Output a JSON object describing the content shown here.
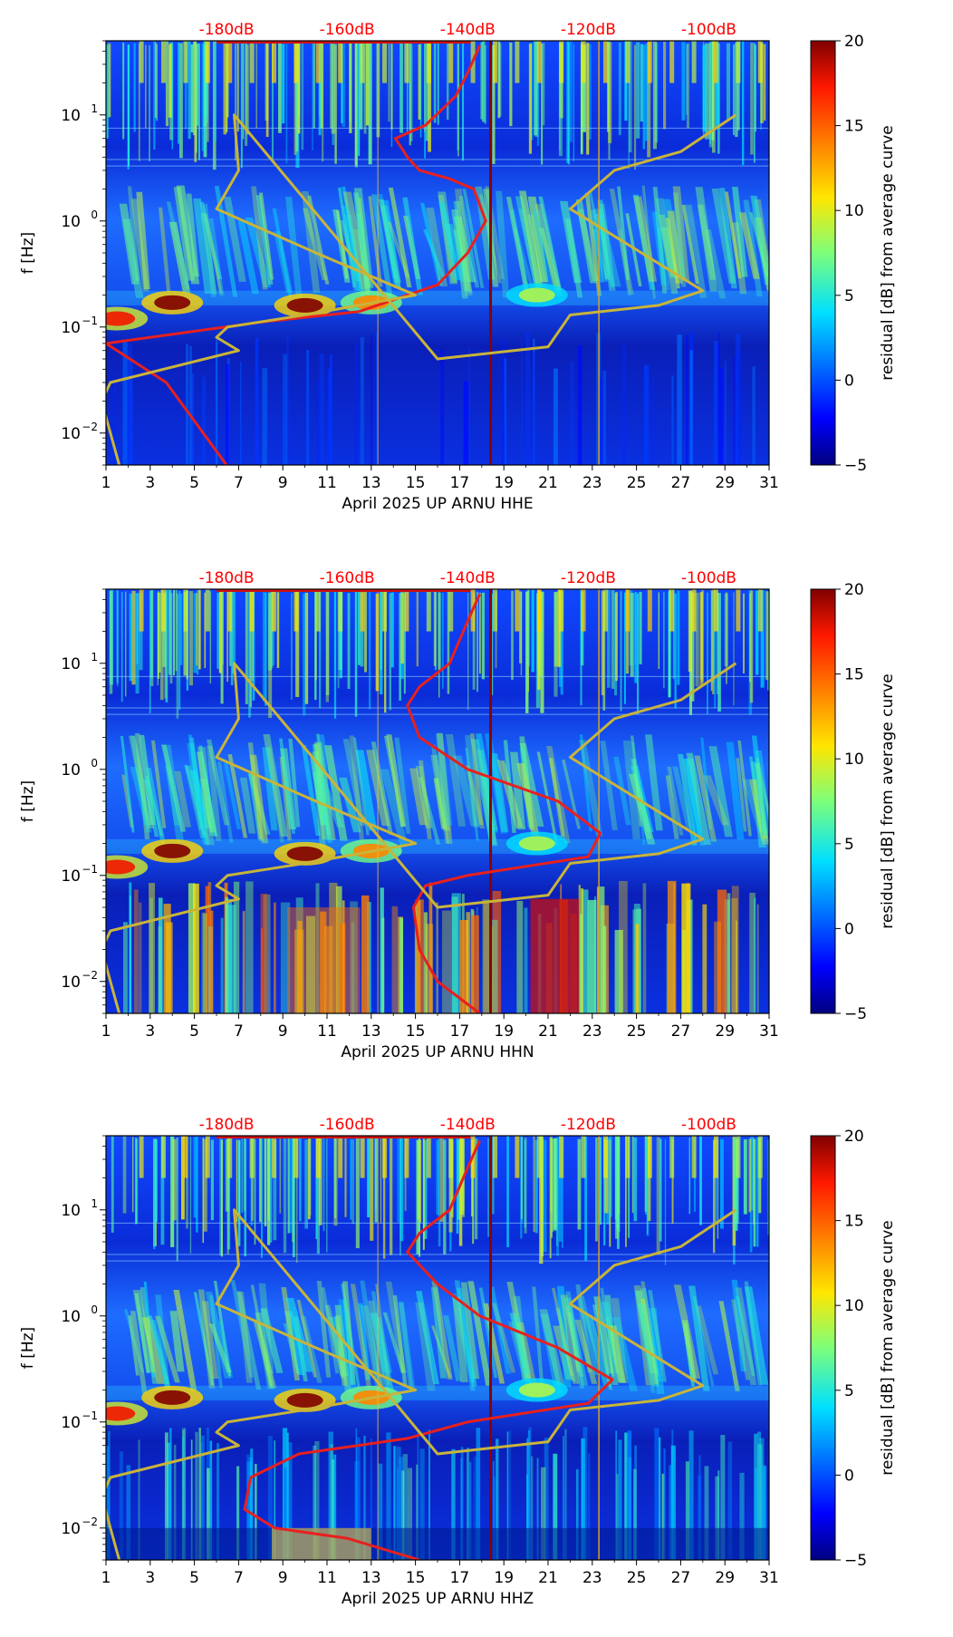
{
  "chart_data": [
    {
      "type": "heatmap",
      "title": "",
      "xlabel": "April 2025 UP ARNU  HHE",
      "ylabel": "f [Hz]",
      "x_ticks": [
        "1",
        "3",
        "5",
        "7",
        "9",
        "11",
        "13",
        "15",
        "17",
        "19",
        "21",
        "23",
        "25",
        "27",
        "29",
        "31"
      ],
      "xlim": [
        1,
        31
      ],
      "y_ticks": [
        "10",
        "10",
        "10",
        "10"
      ],
      "y_tick_exponents": [
        "−2",
        "−1",
        "0",
        "1"
      ],
      "ylim": [
        0.005,
        50
      ],
      "db_labels": [
        "-180dB",
        "-160dB",
        "-140dB",
        "-120dB",
        "-100dB"
      ],
      "colorbar": {
        "label": "residual [dB] from average curve",
        "ticks": [
          "−5",
          "0",
          "5",
          "10",
          "15",
          "20"
        ],
        "range": [
          -5,
          20
        ]
      },
      "series": [
        {
          "name": "red spectrum curve",
          "color": "#e8201e",
          "points": [
            [
              -180,
              0.005
            ],
            [
              -190,
              0.03
            ],
            [
              -200,
              0.07
            ],
            [
              -175,
              0.11
            ],
            [
              -158,
              0.14
            ],
            [
              -145,
              0.25
            ],
            [
              -140,
              0.5
            ],
            [
              -137,
              1.0
            ],
            [
              -139,
              2.0
            ],
            [
              -143,
              2.5
            ],
            [
              -148,
              3.0
            ],
            [
              -150,
              4.0
            ],
            [
              -152,
              6.0
            ],
            [
              -147,
              8.0
            ],
            [
              -142,
              15
            ],
            [
              -140,
              25
            ],
            [
              -138,
              45
            ]
          ]
        },
        {
          "name": "yellow reference curve",
          "color": "#c8b43a",
          "points": [
            [
              1.6,
              0.005
            ],
            [
              1.2,
              0.01
            ],
            [
              0.8,
              0.02
            ],
            [
              1.2,
              0.03
            ],
            [
              7.0,
              0.06
            ],
            [
              6.0,
              0.08
            ],
            [
              6.5,
              0.1
            ],
            [
              10.0,
              0.13
            ],
            [
              15.0,
              0.2
            ],
            [
              10.5,
              0.5
            ],
            [
              6.0,
              1.3
            ],
            [
              7.0,
              3.0
            ],
            [
              6.8,
              10
            ],
            [
              16.0,
              0.05
            ],
            [
              21.0,
              0.065
            ],
            [
              22.0,
              0.13
            ],
            [
              26.0,
              0.16
            ],
            [
              28.0,
              0.22
            ],
            [
              22.0,
              1.3
            ],
            [
              24.0,
              3.0
            ],
            [
              27.0,
              4.5
            ],
            [
              29.5,
              10
            ]
          ]
        }
      ]
    },
    {
      "type": "heatmap",
      "title": "",
      "xlabel": "April 2025 UP ARNU  HHN",
      "ylabel": "f [Hz]",
      "x_ticks": [
        "1",
        "3",
        "5",
        "7",
        "9",
        "11",
        "13",
        "15",
        "17",
        "19",
        "21",
        "23",
        "25",
        "27",
        "29",
        "31"
      ],
      "xlim": [
        1,
        31
      ],
      "y_ticks": [
        "10",
        "10",
        "10",
        "10"
      ],
      "y_tick_exponents": [
        "−2",
        "−1",
        "0",
        "1"
      ],
      "ylim": [
        0.005,
        50
      ],
      "db_labels": [
        "-180dB",
        "-160dB",
        "-140dB",
        "-120dB",
        "-100dB"
      ],
      "colorbar": {
        "label": "residual [dB] from average curve",
        "ticks": [
          "−5",
          "0",
          "5",
          "10",
          "15",
          "20"
        ],
        "range": [
          -5,
          20
        ]
      },
      "series": [
        {
          "name": "red spectrum curve",
          "color": "#e8201e",
          "points": [
            [
              -138,
              0.005
            ],
            [
              -145,
              0.01
            ],
            [
              -148,
              0.02
            ],
            [
              -149,
              0.05
            ],
            [
              -147,
              0.08
            ],
            [
              -140,
              0.1
            ],
            [
              -120,
              0.15
            ],
            [
              -118,
              0.25
            ],
            [
              -125,
              0.5
            ],
            [
              -140,
              1.0
            ],
            [
              -148,
              2.0
            ],
            [
              -150,
              4.0
            ],
            [
              -148,
              6.0
            ],
            [
              -143,
              10
            ],
            [
              -140,
              25
            ],
            [
              -138,
              45
            ]
          ]
        },
        {
          "name": "yellow reference curve",
          "color": "#c8b43a",
          "points": [
            [
              1.6,
              0.005
            ],
            [
              1.2,
              0.01
            ],
            [
              0.8,
              0.02
            ],
            [
              1.2,
              0.03
            ],
            [
              7.0,
              0.06
            ],
            [
              6.0,
              0.08
            ],
            [
              6.5,
              0.1
            ],
            [
              10.0,
              0.13
            ],
            [
              15.0,
              0.2
            ],
            [
              10.5,
              0.5
            ],
            [
              6.0,
              1.3
            ],
            [
              7.0,
              3.0
            ],
            [
              6.8,
              10
            ],
            [
              16.0,
              0.05
            ],
            [
              21.0,
              0.065
            ],
            [
              22.0,
              0.13
            ],
            [
              26.0,
              0.16
            ],
            [
              28.0,
              0.22
            ],
            [
              22.0,
              1.3
            ],
            [
              24.0,
              3.0
            ],
            [
              27.0,
              4.5
            ],
            [
              29.5,
              10
            ]
          ]
        }
      ]
    },
    {
      "type": "heatmap",
      "title": "",
      "xlabel": "April 2025 UP ARNU  HHZ",
      "ylabel": "f [Hz]",
      "x_ticks": [
        "1",
        "3",
        "5",
        "7",
        "9",
        "11",
        "13",
        "15",
        "17",
        "19",
        "21",
        "23",
        "25",
        "27",
        "29",
        "31"
      ],
      "xlim": [
        1,
        31
      ],
      "y_ticks": [
        "10",
        "10",
        "10",
        "10"
      ],
      "y_tick_exponents": [
        "−2",
        "−1",
        "0",
        "1"
      ],
      "ylim": [
        0.005,
        50
      ],
      "db_labels": [
        "-180dB",
        "-160dB",
        "-140dB",
        "-120dB",
        "-100dB"
      ],
      "colorbar": {
        "label": "residual [dB] from average curve",
        "ticks": [
          "−5",
          "0",
          "5",
          "10",
          "15",
          "20"
        ],
        "range": [
          -5,
          20
        ]
      },
      "series": [
        {
          "name": "red spectrum curve",
          "color": "#e8201e",
          "points": [
            [
              -148,
              0.005
            ],
            [
              -160,
              0.008
            ],
            [
              -172,
              0.01
            ],
            [
              -177,
              0.015
            ],
            [
              -176,
              0.03
            ],
            [
              -168,
              0.05
            ],
            [
              -150,
              0.07
            ],
            [
              -140,
              0.1
            ],
            [
              -120,
              0.15
            ],
            [
              -116,
              0.25
            ],
            [
              -125,
              0.5
            ],
            [
              -138,
              1.0
            ],
            [
              -145,
              2.0
            ],
            [
              -150,
              4.0
            ],
            [
              -148,
              6.0
            ],
            [
              -143,
              10
            ],
            [
              -140,
              25
            ],
            [
              -138,
              45
            ]
          ]
        },
        {
          "name": "yellow reference curve",
          "color": "#c8b43a",
          "points": [
            [
              1.6,
              0.005
            ],
            [
              1.2,
              0.01
            ],
            [
              0.8,
              0.02
            ],
            [
              1.2,
              0.03
            ],
            [
              7.0,
              0.06
            ],
            [
              6.0,
              0.08
            ],
            [
              6.5,
              0.1
            ],
            [
              10.0,
              0.13
            ],
            [
              15.0,
              0.2
            ],
            [
              10.5,
              0.5
            ],
            [
              6.0,
              1.3
            ],
            [
              7.0,
              3.0
            ],
            [
              6.8,
              10
            ],
            [
              16.0,
              0.05
            ],
            [
              21.0,
              0.065
            ],
            [
              22.0,
              0.13
            ],
            [
              26.0,
              0.16
            ],
            [
              28.0,
              0.22
            ],
            [
              22.0,
              1.3
            ],
            [
              24.0,
              3.0
            ],
            [
              27.0,
              4.5
            ],
            [
              29.5,
              10
            ]
          ]
        }
      ]
    }
  ]
}
